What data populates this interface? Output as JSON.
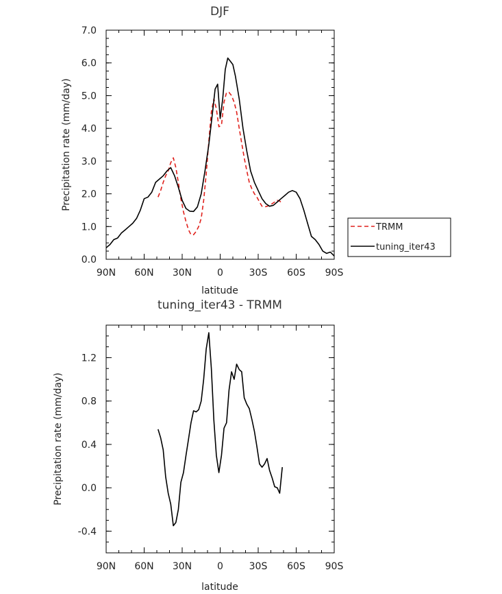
{
  "chart_data": [
    {
      "type": "line",
      "title": "DJF",
      "xlabel": "latitude",
      "ylabel": "Precipitation rate (mm/day)",
      "xlim": [
        -90,
        90
      ],
      "ylim": [
        0,
        7
      ],
      "x_ticks": [
        {
          "value": -90,
          "label": "90N"
        },
        {
          "value": -60,
          "label": "60N"
        },
        {
          "value": -30,
          "label": "30N"
        },
        {
          "value": 0,
          "label": "0"
        },
        {
          "value": 30,
          "label": "30S"
        },
        {
          "value": 60,
          "label": "60S"
        },
        {
          "value": 90,
          "label": "90S"
        }
      ],
      "y_ticks": [
        {
          "value": 0,
          "label": "0.0"
        },
        {
          "value": 1,
          "label": "1.0"
        },
        {
          "value": 2,
          "label": "2.0"
        },
        {
          "value": 3,
          "label": "3.0"
        },
        {
          "value": 4,
          "label": "4.0"
        },
        {
          "value": 5,
          "label": "5.0"
        },
        {
          "value": 6,
          "label": "6.0"
        },
        {
          "value": 7,
          "label": "7.0"
        }
      ],
      "legend": {
        "placement": "right"
      },
      "series": [
        {
          "name": "TRMM",
          "color": "#e0201b",
          "dash": "dashed",
          "x": [
            -49,
            -47,
            -45,
            -43,
            -41,
            -39,
            -37,
            -35,
            -33,
            -31,
            -29,
            -27,
            -25,
            -23,
            -21,
            -19,
            -17,
            -15,
            -13,
            -11,
            -9,
            -7,
            -5,
            -3,
            -1,
            1,
            3,
            5,
            7,
            9,
            11,
            13,
            15,
            17,
            19,
            21,
            23,
            25,
            27,
            29,
            31,
            33,
            35,
            37,
            39,
            41,
            43,
            45,
            47,
            49
          ],
          "y": [
            1.9,
            2.1,
            2.35,
            2.55,
            2.7,
            2.95,
            3.1,
            2.8,
            2.35,
            1.85,
            1.45,
            1.15,
            0.9,
            0.75,
            0.75,
            0.85,
            1.0,
            1.25,
            1.8,
            2.6,
            3.6,
            4.5,
            4.9,
            4.6,
            4.05,
            4.1,
            4.8,
            5.1,
            5.1,
            5.0,
            4.8,
            4.5,
            4.0,
            3.55,
            3.1,
            2.7,
            2.35,
            2.15,
            2.0,
            1.9,
            1.75,
            1.62,
            1.6,
            1.62,
            1.65,
            1.7,
            1.75,
            1.8,
            1.78,
            1.7
          ]
        },
        {
          "name": "tuning_iter43",
          "color": "#000000",
          "dash": "solid",
          "x": [
            -90,
            -87,
            -84,
            -81,
            -78,
            -75,
            -72,
            -69,
            -66,
            -63,
            -60,
            -57,
            -54,
            -51,
            -48,
            -45,
            -42,
            -39,
            -36,
            -33,
            -30,
            -27,
            -24,
            -21,
            -18,
            -15,
            -12,
            -9,
            -6,
            -4,
            -2,
            0,
            2,
            4,
            6,
            8,
            10,
            12,
            15,
            18,
            21,
            24,
            27,
            30,
            33,
            36,
            39,
            42,
            45,
            48,
            51,
            54,
            57,
            60,
            63,
            66,
            69,
            72,
            75,
            78,
            81,
            84,
            87,
            90
          ],
          "y": [
            0.35,
            0.45,
            0.6,
            0.65,
            0.8,
            0.9,
            1.0,
            1.1,
            1.25,
            1.5,
            1.85,
            1.9,
            2.05,
            2.35,
            2.45,
            2.55,
            2.7,
            2.8,
            2.55,
            2.2,
            1.8,
            1.55,
            1.47,
            1.46,
            1.6,
            2.0,
            2.7,
            3.5,
            4.5,
            5.2,
            5.35,
            4.3,
            4.9,
            5.8,
            6.15,
            6.05,
            5.95,
            5.6,
            4.9,
            4.0,
            3.3,
            2.7,
            2.35,
            2.1,
            1.85,
            1.7,
            1.62,
            1.65,
            1.75,
            1.85,
            1.95,
            2.05,
            2.1,
            2.05,
            1.85,
            1.5,
            1.1,
            0.7,
            0.6,
            0.45,
            0.25,
            0.18,
            0.22,
            0.1
          ]
        }
      ]
    },
    {
      "type": "line",
      "title": "tuning_iter43 - TRMM",
      "xlabel": "latitude",
      "ylabel": "Precipitation rate (mm/day)",
      "xlim": [
        -90,
        90
      ],
      "ylim": [
        -0.6,
        1.5
      ],
      "x_ticks": [
        {
          "value": -90,
          "label": "90N"
        },
        {
          "value": -60,
          "label": "60N"
        },
        {
          "value": -30,
          "label": "30N"
        },
        {
          "value": 0,
          "label": "0"
        },
        {
          "value": 30,
          "label": "30S"
        },
        {
          "value": 60,
          "label": "60S"
        },
        {
          "value": 90,
          "label": "90S"
        }
      ],
      "y_ticks": [
        {
          "value": -0.4,
          "label": "-0.4"
        },
        {
          "value": 0.0,
          "label": "0.0"
        },
        {
          "value": 0.4,
          "label": "0.4"
        },
        {
          "value": 0.8,
          "label": "0.8"
        },
        {
          "value": 1.2,
          "label": "1.2"
        }
      ],
      "series": [
        {
          "color": "#000000",
          "dash": "solid",
          "x": [
            -49,
            -47,
            -45,
            -43,
            -41,
            -39,
            -37,
            -35,
            -33,
            -31,
            -29,
            -27,
            -25,
            -23,
            -21,
            -19,
            -17,
            -15,
            -13,
            -11,
            -9,
            -7,
            -5,
            -3,
            -1,
            1,
            3,
            5,
            7,
            9,
            11,
            13,
            15,
            17,
            19,
            21,
            23,
            25,
            27,
            29,
            31,
            33,
            35,
            37,
            39,
            41,
            43,
            45,
            47,
            49
          ],
          "y": [
            0.54,
            0.46,
            0.35,
            0.1,
            -0.05,
            -0.15,
            -0.35,
            -0.32,
            -0.2,
            0.05,
            0.14,
            0.3,
            0.45,
            0.6,
            0.71,
            0.7,
            0.72,
            0.8,
            1.0,
            1.28,
            1.43,
            1.1,
            0.62,
            0.3,
            0.14,
            0.3,
            0.55,
            0.6,
            0.9,
            1.07,
            1.0,
            1.14,
            1.09,
            1.07,
            0.83,
            0.77,
            0.73,
            0.63,
            0.52,
            0.38,
            0.22,
            0.19,
            0.22,
            0.27,
            0.16,
            0.09,
            0.01,
            0.0,
            -0.05,
            0.19
          ]
        }
      ]
    }
  ]
}
